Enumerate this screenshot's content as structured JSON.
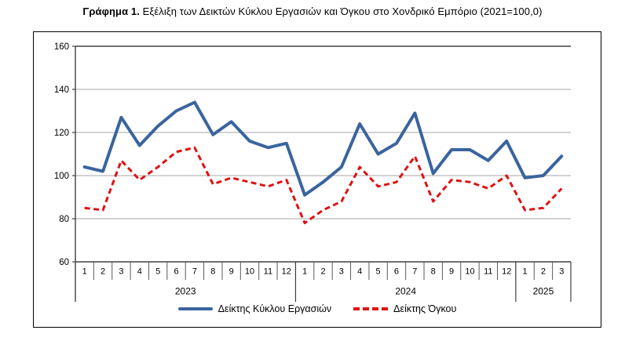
{
  "title": {
    "bold": "Γράφημα 1.",
    "rest": " Εξέλιξη των Δεικτών Κύκλου Εργασιών και Όγκου στο Χονδρικό Εμπόριο (2021=100,0)"
  },
  "chart_data": {
    "type": "line",
    "title": "Γράφημα 1. Εξέλιξη των Δεικτών Κύκλου Εργασιών και Όγκου στο Χονδρικό Εμπόριο (2021=100,0)",
    "ylim": [
      60,
      160
    ],
    "yticks": [
      60,
      80,
      100,
      120,
      140,
      160
    ],
    "grid": true,
    "legend_position": "bottom",
    "x_groups": [
      {
        "label": "2023",
        "months": [
          "1",
          "2",
          "3",
          "4",
          "5",
          "6",
          "7",
          "8",
          "9",
          "10",
          "11",
          "12"
        ]
      },
      {
        "label": "2024",
        "months": [
          "1",
          "2",
          "3",
          "4",
          "5",
          "6",
          "7",
          "8",
          "9",
          "10",
          "11",
          "12"
        ]
      },
      {
        "label": "2025",
        "months": [
          "1",
          "2",
          "3"
        ]
      }
    ],
    "series": [
      {
        "name": "Δείκτης Κύκλου Εργασιών",
        "style": "solid",
        "color": "#3A649E",
        "values": [
          104,
          102,
          127,
          114,
          123,
          130,
          134,
          119,
          125,
          116,
          113,
          115,
          91,
          97,
          104,
          124,
          110,
          115,
          129,
          101,
          112,
          112,
          107,
          116,
          99,
          100,
          109
        ]
      },
      {
        "name": "Δείκτης Όγκου",
        "style": "dashed",
        "color": "#E01212",
        "values": [
          85,
          84,
          107,
          98,
          104,
          111,
          113,
          96,
          99,
          97,
          95,
          98,
          78,
          84,
          88,
          104,
          95,
          97,
          109,
          88,
          98,
          97,
          94,
          100,
          84,
          85,
          94
        ]
      }
    ]
  },
  "colors": {
    "turnover_line": "#3A649E",
    "volume_line": "#E01212",
    "gridline": "#A6A6A6",
    "axis": "#404040",
    "tick": "#595959",
    "frame_border": "#000000"
  }
}
